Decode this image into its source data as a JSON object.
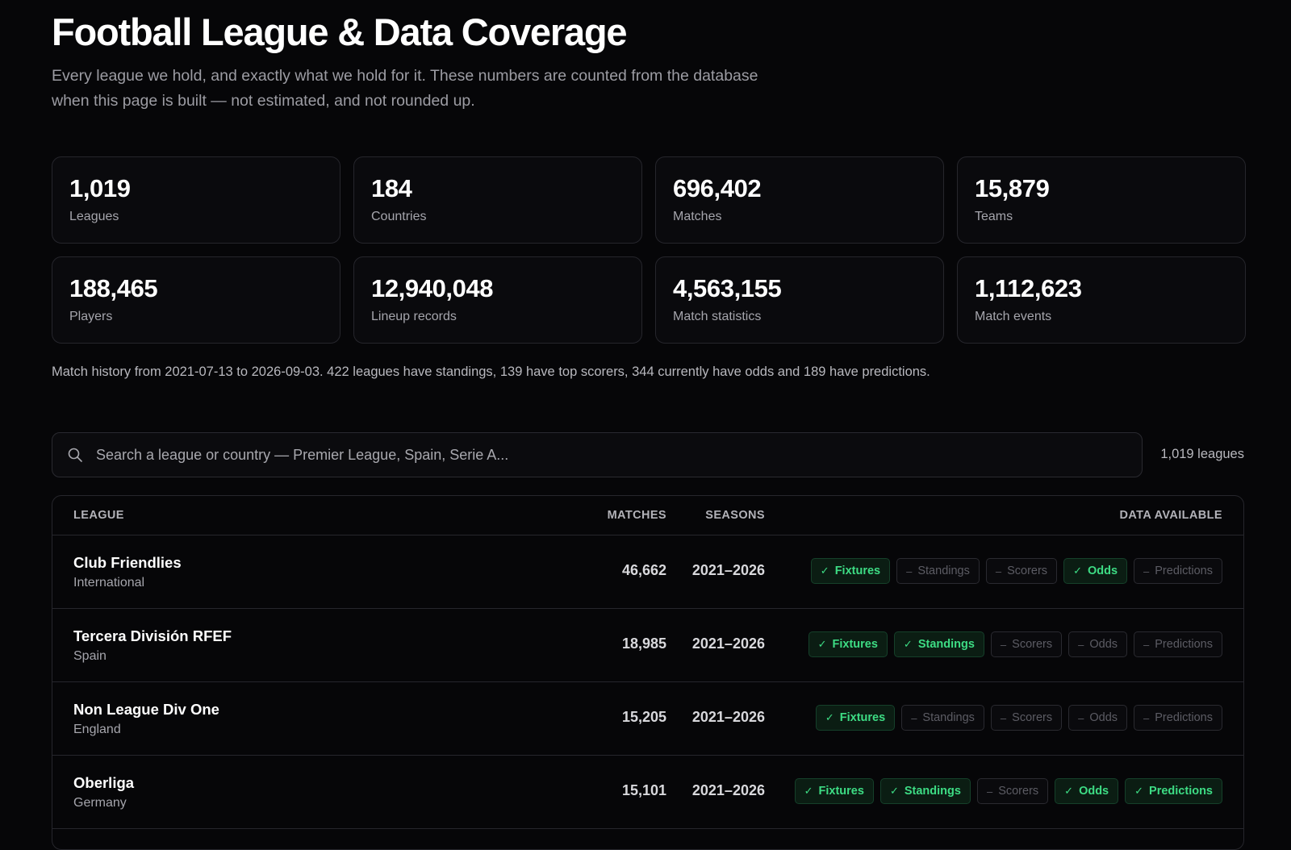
{
  "header": {
    "title": "Football League & Data Coverage",
    "intro": "Every league we hold, and exactly what we hold for it. These numbers are counted from the database when this page is built — not estimated, and not rounded up."
  },
  "stats": [
    {
      "value": "1,019",
      "label": "Leagues"
    },
    {
      "value": "184",
      "label": "Countries"
    },
    {
      "value": "696,402",
      "label": "Matches"
    },
    {
      "value": "15,879",
      "label": "Teams"
    },
    {
      "value": "188,465",
      "label": "Players"
    },
    {
      "value": "12,940,048",
      "label": "Lineup records"
    },
    {
      "value": "4,563,155",
      "label": "Match statistics"
    },
    {
      "value": "1,112,623",
      "label": "Match events"
    }
  ],
  "summary": "Match history from 2021-07-13 to 2026-09-03. 422 leagues have standings, 139 have top scorers, 344 currently have odds and 189 have predictions.",
  "search": {
    "placeholder": "Search a league or country — Premier League, Spain, Serie A...",
    "value": "",
    "icon": "search-icon",
    "count": "1,019 leagues"
  },
  "table": {
    "headers": {
      "league": "LEAGUE",
      "matches": "MATCHES",
      "seasons": "SEASONS",
      "data": "DATA AVAILABLE"
    },
    "available_mark": "✓",
    "unavailable_mark": "–",
    "rows": [
      {
        "name": "Club Friendlies",
        "country": "International",
        "matches": "46,662",
        "seasons": "2021–2026",
        "badges": [
          {
            "label": "Fixtures",
            "available": true
          },
          {
            "label": "Standings",
            "available": false
          },
          {
            "label": "Scorers",
            "available": false
          },
          {
            "label": "Odds",
            "available": true
          },
          {
            "label": "Predictions",
            "available": false
          }
        ]
      },
      {
        "name": "Tercera División RFEF",
        "country": "Spain",
        "matches": "18,985",
        "seasons": "2021–2026",
        "badges": [
          {
            "label": "Fixtures",
            "available": true
          },
          {
            "label": "Standings",
            "available": true
          },
          {
            "label": "Scorers",
            "available": false
          },
          {
            "label": "Odds",
            "available": false
          },
          {
            "label": "Predictions",
            "available": false
          }
        ]
      },
      {
        "name": "Non League Div One",
        "country": "England",
        "matches": "15,205",
        "seasons": "2021–2026",
        "badges": [
          {
            "label": "Fixtures",
            "available": true
          },
          {
            "label": "Standings",
            "available": false
          },
          {
            "label": "Scorers",
            "available": false
          },
          {
            "label": "Odds",
            "available": false
          },
          {
            "label": "Predictions",
            "available": false
          }
        ]
      },
      {
        "name": "Oberliga",
        "country": "Germany",
        "matches": "15,101",
        "seasons": "2021–2026",
        "badges": [
          {
            "label": "Fixtures",
            "available": true
          },
          {
            "label": "Standings",
            "available": true
          },
          {
            "label": "Scorers",
            "available": false
          },
          {
            "label": "Odds",
            "available": true
          },
          {
            "label": "Predictions",
            "available": true
          }
        ]
      }
    ]
  },
  "colors": {
    "background": "#060608",
    "available_text": "#3ddc84",
    "unavailable_text": "#5c5c64",
    "border": "#26262c"
  }
}
